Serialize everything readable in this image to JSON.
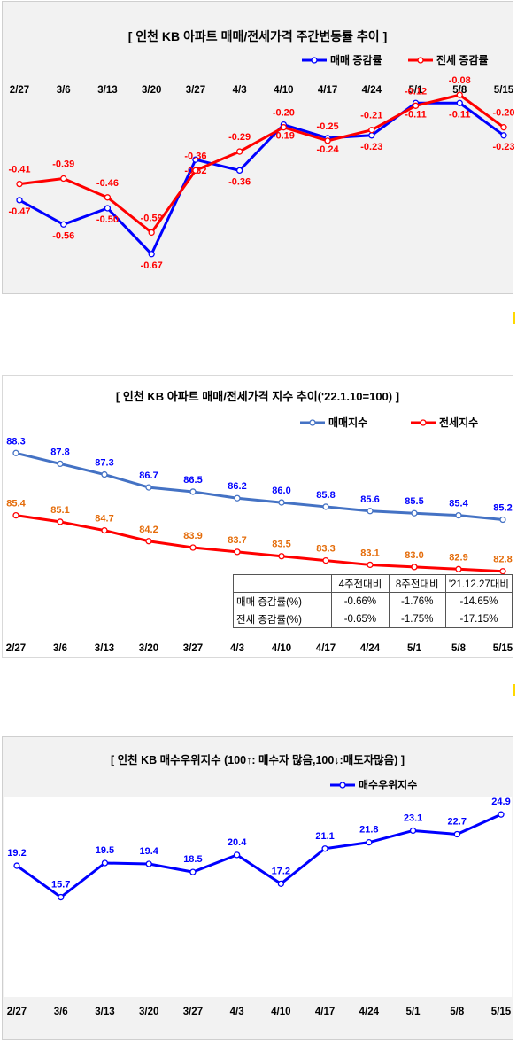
{
  "charts": {
    "c1": {
      "title": "[ 인천  KB 아파트 매매/전세가격 주간변동률 추이 ]",
      "legend": [
        "매매 증감률",
        "전세 증감률"
      ]
    },
    "c2": {
      "title": "[  인천  KB 아파트 매매/전세가격 지수 추이('22.1.10=100)  ]",
      "legend": [
        "매매지수",
        "전세지수"
      ],
      "table": {
        "headers": [
          "",
          "4주전대비",
          "8주전대비",
          "'21.12.27대비"
        ],
        "rows": [
          [
            "매매 증감률(%)",
            "-0.66%",
            "-1.76%",
            "-14.65%"
          ],
          [
            "전세 증감률(%)",
            "-0.65%",
            "-1.75%",
            "-17.15%"
          ]
        ]
      }
    },
    "c3": {
      "title": "[ 인천 KB 매수우위지수 (100↑: 매수자 많음,100↓:매도자많음) ]",
      "legend": [
        "매수우위지수"
      ]
    }
  },
  "chart_data": [
    {
      "type": "line",
      "title": "[ 인천  KB 아파트 매매/전세가격 주간변동률 추이 ]",
      "categories": [
        "2/27",
        "3/6",
        "3/13",
        "3/20",
        "3/27",
        "4/3",
        "4/10",
        "4/17",
        "4/24",
        "5/1",
        "5/8",
        "5/15"
      ],
      "series": [
        {
          "name": "매매 증감률",
          "values": [
            -0.47,
            -0.56,
            -0.5,
            -0.67,
            -0.32,
            -0.36,
            -0.19,
            -0.24,
            -0.23,
            -0.11,
            -0.11,
            -0.23
          ],
          "color": "#0000ff"
        },
        {
          "name": "전세 증감률",
          "values": [
            -0.41,
            -0.39,
            -0.46,
            -0.59,
            -0.36,
            -0.29,
            -0.2,
            -0.25,
            -0.21,
            -0.12,
            -0.08,
            -0.2
          ],
          "color": "#ff0000"
        }
      ],
      "labels": {
        "매매 증감률": [
          "-0.47",
          "-0.56",
          "-0.50",
          "-0.67",
          "-0.32",
          "-0.36",
          "-0.19",
          "-0.24",
          "-0.23",
          "-0.11",
          "-0.11",
          "-0.23"
        ],
        "전세 증감률": [
          "-0.41",
          "-0.39",
          "-0.46",
          "-0.59",
          "-0.36",
          "-0.29",
          "-0.20",
          "-0.25",
          "-0.21",
          "-0.12",
          "-0.08",
          "-0.20"
        ]
      },
      "ylim": [
        -0.72,
        -0.05
      ],
      "grid": false,
      "legend_position": "top-right"
    },
    {
      "type": "line",
      "title": "[  인천  KB 아파트 매매/전세가격 지수 추이('22.1.10=100)  ]",
      "categories": [
        "2/27",
        "3/6",
        "3/13",
        "3/20",
        "3/27",
        "4/3",
        "4/10",
        "4/17",
        "4/24",
        "5/1",
        "5/8",
        "5/15"
      ],
      "series": [
        {
          "name": "매매지수",
          "values": [
            88.3,
            87.8,
            87.3,
            86.7,
            86.5,
            86.2,
            86.0,
            85.8,
            85.6,
            85.5,
            85.4,
            85.2
          ],
          "color": "#4472c4"
        },
        {
          "name": "전세지수",
          "values": [
            85.4,
            85.1,
            84.7,
            84.2,
            83.9,
            83.7,
            83.5,
            83.3,
            83.1,
            83.0,
            82.9,
            82.8
          ],
          "color": "#ff0000"
        }
      ],
      "labels": {
        "매매지수": [
          "88.3",
          "87.8",
          "87.3",
          "86.7",
          "86.5",
          "86.2",
          "86.0",
          "85.8",
          "85.6",
          "85.5",
          "85.4",
          "85.2"
        ],
        "전세지수": [
          "85.4",
          "85.1",
          "84.7",
          "84.2",
          "83.9",
          "83.7",
          "83.5",
          "83.3",
          "83.1",
          "83.0",
          "82.9",
          "82.8"
        ]
      },
      "ylim": [
        82.5,
        88.6
      ],
      "grid": false,
      "legend_position": "top-right"
    },
    {
      "type": "line",
      "title": "[ 인천 KB 매수우위지수 (100↑: 매수자 많음,100↓:매도자많음) ]",
      "categories": [
        "2/27",
        "3/6",
        "3/13",
        "3/20",
        "3/27",
        "4/3",
        "4/10",
        "4/17",
        "4/24",
        "5/1",
        "5/8",
        "5/15"
      ],
      "series": [
        {
          "name": "매수우위지수",
          "values": [
            19.2,
            15.7,
            19.5,
            19.4,
            18.5,
            20.4,
            17.2,
            21.1,
            21.8,
            23.1,
            22.7,
            24.9
          ],
          "color": "#0000ff"
        }
      ],
      "labels": {
        "매수우위지수": [
          "19.2",
          "15.7",
          "19.5",
          "19.4",
          "18.5",
          "20.4",
          "17.2",
          "21.1",
          "21.8",
          "23.1",
          "22.7",
          "24.9"
        ]
      },
      "ylim": [
        0,
        26
      ],
      "grid": false,
      "legend_position": "top-right"
    }
  ]
}
